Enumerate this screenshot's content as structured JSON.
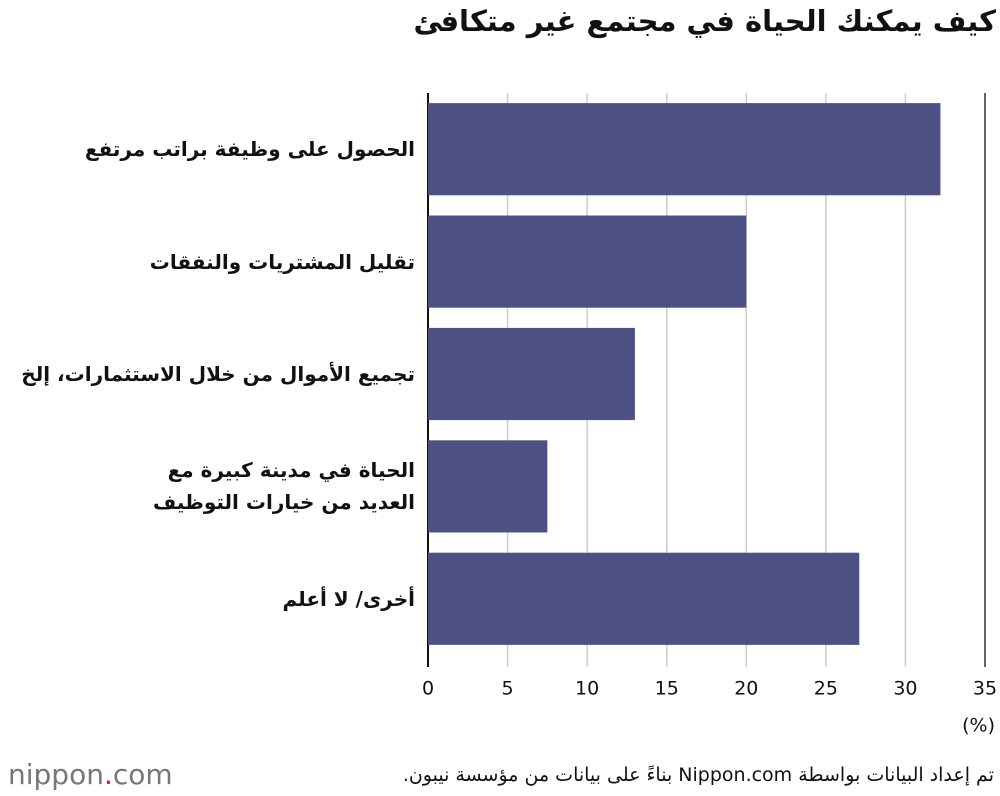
{
  "chart_data": {
    "type": "barh",
    "title": "كيف يمكنك الحياة في مجتمع غير متكافئ",
    "categories": [
      "الحصول على وظيفة براتب مرتفع",
      "تقليل المشتريات والنفقات",
      "تجميع الأموال من خلال الاستثمارات، إلخ",
      "الحياة في مدينة كبيرة مع\nالعديد من خيارات التوظيف",
      "أخرى/ لا أعلم"
    ],
    "values": [
      32.2,
      20,
      13,
      7.5,
      27.1
    ],
    "color": "#4d5083",
    "xlim": [
      0,
      35
    ],
    "xticks": [
      0,
      5,
      10,
      15,
      20,
      25,
      30,
      35
    ],
    "x_unit": "(%)",
    "grid": true,
    "source": "تم إعداد البيانات بواسطة Nippon.com بناءً على بيانات من مؤسسة نيبون.",
    "logo": {
      "name": "nippon",
      "dot": ".",
      "domain": "com"
    }
  }
}
